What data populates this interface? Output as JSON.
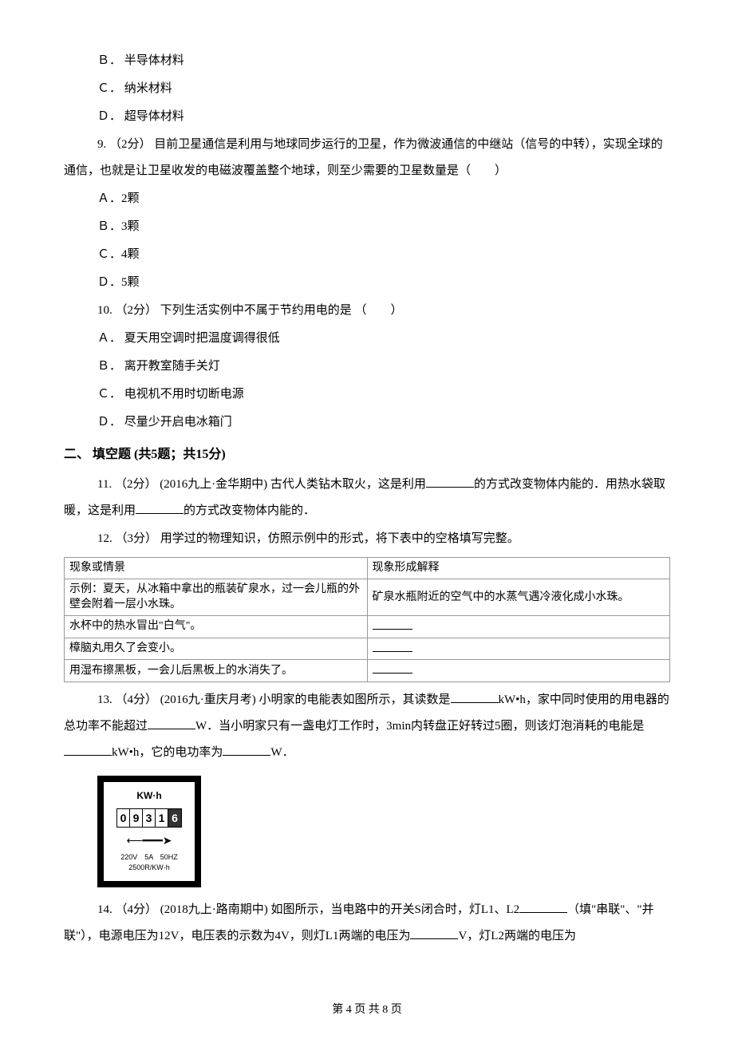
{
  "q8_options": {
    "b": "Ｂ． 半导体材料",
    "c": "Ｃ． 纳米材料",
    "d": "Ｄ． 超导体材料"
  },
  "q9": {
    "stem": "9. （2分） 目前卫星通信是利用与地球同步运行的卫星，作为微波通信的中继站（信号的中转），实现全球的通信，也就是让卫星收发的电磁波覆盖整个地球，则至少需要的卫星数量是（　　）",
    "a": "Ａ．2颗",
    "b": "Ｂ．3颗",
    "c": "Ｃ．4颗",
    "d": "Ｄ．5颗"
  },
  "q10": {
    "stem": "10. （2分） 下列生活实例中不属于节约用电的是 （　　）",
    "a": "Ａ． 夏天用空调时把温度调得很低",
    "b": "Ｂ． 离开教室随手关灯",
    "c": "Ｃ． 电视机不用时切断电源",
    "d": "Ｄ． 尽量少开启电冰箱门"
  },
  "section2_title": "二、 填空题 (共5题；共15分)",
  "q11": {
    "pre": "11. （2分） (2016九上·金华期中) 古代人类钻木取火，这是利用",
    "mid": "的方式改变物体内能的．用热水袋取暖，这是利用",
    "post": "的方式改变物体内能的．"
  },
  "q12": {
    "stem": "12. （3分） 用学过的物理知识，仿照示例中的形式，将下表中的空格填写完整。",
    "table": {
      "header": [
        "现象或情景",
        "现象形成解释"
      ],
      "rows": [
        [
          "示例：夏天，从冰箱中拿出的瓶装矿泉水，过一会儿瓶的外壁会附着一层小水珠。",
          "矿泉水瓶附近的空气中的水蒸气遇冷液化成小水珠。"
        ],
        [
          "水杯中的热水冒出\"白气\"。",
          ""
        ],
        [
          "樟脑丸用久了会变小。",
          ""
        ],
        [
          "用湿布擦黑板，一会儿后黑板上的水消失了。",
          ""
        ]
      ]
    }
  },
  "q13": {
    "p1": "13. （4分） (2016九·重庆月考) 小明家的电能表如图所示，其读数是",
    "p2": "kW•h，家中同时使用的用电器的总功率不能超过",
    "p3": "W．当小明家只有一盏电灯工作时，3min内转盘正好转过5圈，则该灯泡消耗的电能是",
    "p4": "kW•h，它的电功率为",
    "p5": "W．",
    "meter": {
      "unit": "KW·h",
      "digits": [
        "0",
        "9",
        "3",
        "1",
        "6"
      ],
      "spec1": "220V　5A　50HZ",
      "spec2": "2500R/KW·h"
    }
  },
  "q14": {
    "p1": "14. （4分） (2018九上·路南期中) 如图所示，当电路中的开关S闭合时，灯L1、L2",
    "p2": "（填\"串联\"、\"并联\"），电源电压为12V，电压表的示数为4V，则灯L1两端的电压为",
    "p3": "V，灯L2两端的电压为"
  },
  "footer": "第 4 页 共 8 页"
}
